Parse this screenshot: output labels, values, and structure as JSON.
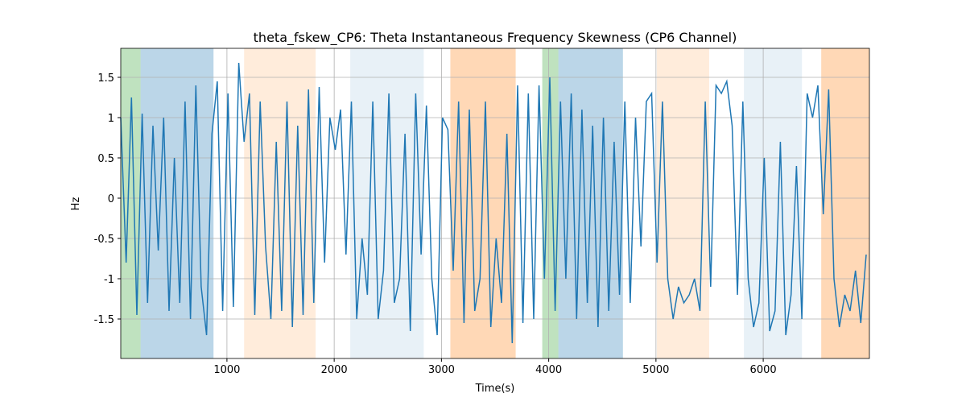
{
  "chart_data": {
    "type": "line",
    "title": "theta_fskew_CP6: Theta Instantaneous Frequency Skewness (CP6 Channel)",
    "xlabel": "Time(s)",
    "ylabel": "Hz",
    "xlim": [
      10,
      6990
    ],
    "ylim": [
      -1.99,
      1.86
    ],
    "xticks": [
      1000,
      2000,
      3000,
      4000,
      5000,
      6000
    ],
    "yticks": [
      -1.5,
      -1.0,
      -0.5,
      0.0,
      0.5,
      1.0,
      1.5
    ],
    "grid": true,
    "spans": [
      {
        "start": 10,
        "end": 195,
        "color": "#2ca02c",
        "alpha": 0.3
      },
      {
        "start": 195,
        "end": 875,
        "color": "#1f77b4",
        "alpha": 0.3
      },
      {
        "start": 1160,
        "end": 1827,
        "color": "#ff7f0e",
        "alpha": 0.15
      },
      {
        "start": 2150,
        "end": 2835,
        "color": "#1f77b4",
        "alpha": 0.1
      },
      {
        "start": 3083,
        "end": 3692,
        "color": "#ff7f0e",
        "alpha": 0.3
      },
      {
        "start": 3940,
        "end": 4090,
        "color": "#2ca02c",
        "alpha": 0.3
      },
      {
        "start": 4090,
        "end": 4692,
        "color": "#1f77b4",
        "alpha": 0.3
      },
      {
        "start": 5008,
        "end": 5496,
        "color": "#ff7f0e",
        "alpha": 0.15
      },
      {
        "start": 5820,
        "end": 6361,
        "color": "#1f77b4",
        "alpha": 0.1
      },
      {
        "start": 6541,
        "end": 6990,
        "color": "#ff7f0e",
        "alpha": 0.3
      }
    ],
    "x": [
      10,
      60,
      110,
      160,
      210,
      260,
      310,
      360,
      410,
      460,
      510,
      560,
      610,
      660,
      710,
      760,
      810,
      860,
      910,
      960,
      1010,
      1060,
      1110,
      1160,
      1210,
      1260,
      1310,
      1360,
      1410,
      1460,
      1510,
      1560,
      1610,
      1660,
      1710,
      1760,
      1810,
      1860,
      1910,
      1960,
      2010,
      2060,
      2110,
      2160,
      2210,
      2260,
      2310,
      2360,
      2410,
      2460,
      2510,
      2560,
      2610,
      2660,
      2710,
      2760,
      2810,
      2860,
      2910,
      2960,
      3010,
      3060,
      3110,
      3160,
      3210,
      3260,
      3310,
      3360,
      3410,
      3460,
      3510,
      3560,
      3610,
      3660,
      3710,
      3760,
      3810,
      3860,
      3910,
      3960,
      4010,
      4060,
      4110,
      4160,
      4210,
      4260,
      4310,
      4360,
      4410,
      4460,
      4510,
      4560,
      4610,
      4660,
      4710,
      4760,
      4810,
      4860,
      4910,
      4960,
      5010,
      5060,
      5110,
      5160,
      5210,
      5260,
      5310,
      5360,
      5410,
      5460,
      5510,
      5560,
      5610,
      5660,
      5710,
      5760,
      5810,
      5860,
      5910,
      5960,
      6010,
      6060,
      6110,
      6160,
      6210,
      6260,
      6310,
      6360,
      6410,
      6460,
      6510,
      6560,
      6610,
      6660,
      6710,
      6760,
      6810,
      6860,
      6910,
      6960
    ],
    "series": [
      {
        "name": "theta_fskew_CP6",
        "color": "#1f77b4",
        "values": [
          1.0,
          -0.8,
          1.25,
          -1.45,
          1.05,
          -1.3,
          0.9,
          -0.65,
          1.0,
          -1.4,
          0.5,
          -1.3,
          1.2,
          -1.5,
          1.4,
          -1.1,
          -1.7,
          0.8,
          1.45,
          -1.4,
          1.3,
          -1.35,
          1.68,
          0.7,
          1.3,
          -1.45,
          1.2,
          -0.6,
          -1.5,
          0.7,
          -1.4,
          1.2,
          -1.6,
          0.9,
          -1.45,
          1.35,
          -1.3,
          1.38,
          -0.8,
          1.0,
          0.6,
          1.1,
          -0.7,
          1.2,
          -1.5,
          -0.5,
          -1.2,
          1.2,
          -1.5,
          -0.9,
          1.3,
          -1.3,
          -1.0,
          0.8,
          -1.65,
          1.3,
          -0.7,
          1.15,
          -1.0,
          -1.7,
          1.0,
          0.85,
          -0.9,
          1.2,
          -1.55,
          1.1,
          -1.4,
          -1.0,
          1.2,
          -1.6,
          -0.5,
          -1.3,
          0.8,
          -1.8,
          1.4,
          -1.55,
          1.3,
          -1.5,
          1.4,
          -1.0,
          1.5,
          -1.4,
          1.2,
          -1.0,
          1.3,
          -1.5,
          1.1,
          -1.3,
          0.9,
          -1.6,
          1.0,
          -1.4,
          0.7,
          -1.2,
          1.2,
          -1.3,
          1.0,
          -0.6,
          1.2,
          1.3,
          -0.8,
          1.2,
          -1.0,
          -1.5,
          -1.1,
          -1.3,
          -1.2,
          -1.0,
          -1.4,
          1.2,
          -1.1,
          1.4,
          1.3,
          1.45,
          0.9,
          -1.2,
          1.2,
          -1.0,
          -1.6,
          -1.3,
          0.5,
          -1.65,
          -1.4,
          0.7,
          -1.7,
          -1.2,
          0.4,
          -1.5,
          1.3,
          1.0,
          1.4,
          -0.2,
          1.35,
          -1.0,
          -1.6,
          -1.2,
          -1.4,
          -0.9,
          -1.55,
          -0.7
        ]
      }
    ]
  }
}
